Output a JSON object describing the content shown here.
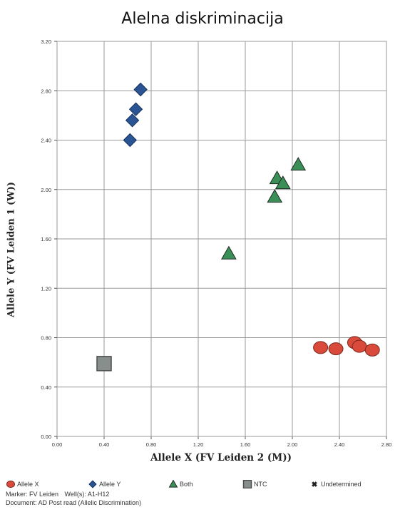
{
  "chart_data": {
    "type": "scatter",
    "title": "Alelna diskriminacija",
    "xlabel": "Allele X (FV Leiden 2 (M))",
    "ylabel": "Allele Y (FV Leiden 1 (W))",
    "xlim": [
      0,
      2.8
    ],
    "ylim": [
      0,
      3.2
    ],
    "x_ticks": [
      "0.00",
      "0.40",
      "0.80",
      "1.20",
      "1.60",
      "2.00",
      "2.40",
      "2.80"
    ],
    "y_ticks": [
      "0.00",
      "0.40",
      "0.80",
      "1.20",
      "1.60",
      "2.00",
      "2.40",
      "2.80",
      "3.20"
    ],
    "x_tick_values": [
      0,
      0.4,
      0.8,
      1.2,
      1.6,
      2.0,
      2.4,
      2.8
    ],
    "y_tick_values": [
      0,
      0.4,
      0.8,
      1.2,
      1.6,
      2.0,
      2.4,
      2.8,
      3.2
    ],
    "grid": true,
    "legend_position": "bottom",
    "series": [
      {
        "name": "Allele X",
        "marker": "circle",
        "color": "#d94a3a",
        "points": [
          [
            2.24,
            0.72
          ],
          [
            2.37,
            0.71
          ],
          [
            2.53,
            0.76
          ],
          [
            2.57,
            0.73
          ],
          [
            2.68,
            0.7
          ]
        ]
      },
      {
        "name": "Allele Y",
        "marker": "diamond",
        "color": "#2a5494",
        "points": [
          [
            0.71,
            2.81
          ],
          [
            0.67,
            2.65
          ],
          [
            0.64,
            2.56
          ],
          [
            0.62,
            2.4
          ]
        ]
      },
      {
        "name": "Both",
        "marker": "triangle",
        "color": "#3a8f57",
        "points": [
          [
            2.05,
            2.2
          ],
          [
            1.87,
            2.09
          ],
          [
            1.92,
            2.05
          ],
          [
            1.85,
            1.94
          ],
          [
            1.46,
            1.48
          ]
        ]
      },
      {
        "name": "NTC",
        "marker": "square",
        "color": "#888e8c",
        "points": [
          [
            0.4,
            0.59
          ]
        ]
      },
      {
        "name": "Undetermined",
        "marker": "x",
        "color": "#222222",
        "points": []
      }
    ]
  },
  "footer": {
    "marker": "Marker: FV Leiden",
    "wells": "Well(s): A1-H12",
    "document": "Document: AD Post read (Allelic Discrimination)"
  }
}
